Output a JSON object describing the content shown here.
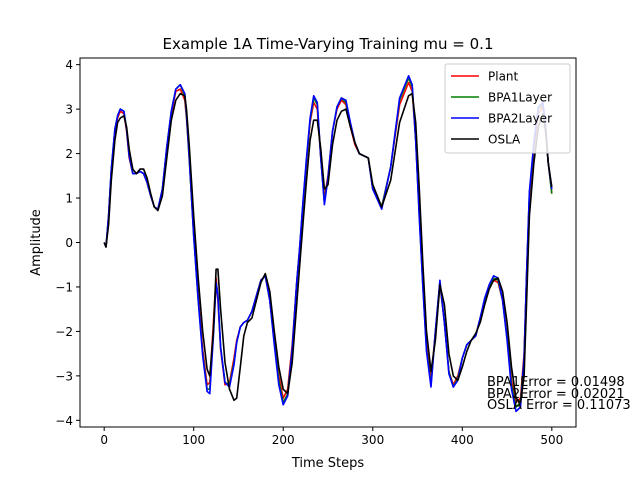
{
  "chart_data": {
    "type": "line",
    "title": "Example 1A Time-Varying Training mu = 0.1",
    "xlabel": "Time Steps",
    "ylabel": "Amplitude",
    "xlim": [
      -27,
      527
    ],
    "ylim": [
      -4.15,
      4.15
    ],
    "xticks": [
      0,
      100,
      200,
      300,
      400,
      500
    ],
    "xtick_labels": [
      "0",
      "100",
      "200",
      "300",
      "400",
      "500"
    ],
    "yticks": [
      -4,
      -3,
      -2,
      -1,
      0,
      1,
      2,
      3,
      4
    ],
    "ytick_labels": [
      "−4",
      "−3",
      "−2",
      "−1",
      "0",
      "1",
      "2",
      "3",
      "4"
    ],
    "grid": false,
    "legend_position": "top-right",
    "annotations": [
      "BPA1Error = 0.01498",
      "BPA2Error = 0.02021",
      "OSLA Error = 0.11073"
    ],
    "series": [
      {
        "name": "Plant",
        "color": "#ff0000",
        "x": [
          0,
          2,
          5,
          8,
          12,
          15,
          18,
          22,
          25,
          28,
          32,
          36,
          40,
          44,
          48,
          52,
          56,
          60,
          65,
          70,
          75,
          80,
          85,
          90,
          92,
          95,
          100,
          105,
          110,
          115,
          118,
          122,
          125,
          127,
          130,
          135,
          140,
          145,
          148,
          152,
          156,
          160,
          165,
          170,
          175,
          180,
          185,
          190,
          195,
          200,
          205,
          210,
          215,
          218,
          222,
          226,
          230,
          234,
          238,
          242,
          246,
          250,
          255,
          260,
          265,
          270,
          275,
          280,
          285,
          290,
          295,
          300,
          310,
          320,
          330,
          340,
          344,
          348,
          352,
          356,
          360,
          365,
          370,
          375,
          380,
          385,
          390,
          395,
          400,
          405,
          410,
          415,
          420,
          425,
          430,
          435,
          440,
          445,
          450,
          455,
          460,
          465,
          469,
          472,
          475,
          480,
          485,
          490,
          493,
          496,
          500
        ],
        "y": [
          0.0,
          -0.1,
          0.6,
          1.6,
          2.5,
          2.8,
          2.95,
          2.9,
          2.5,
          1.9,
          1.55,
          1.55,
          1.6,
          1.55,
          1.35,
          1.05,
          0.8,
          0.75,
          1.2,
          2.1,
          2.9,
          3.4,
          3.45,
          3.2,
          2.8,
          1.9,
          0.2,
          -1.2,
          -2.4,
          -3.2,
          -3.15,
          -1.8,
          -0.8,
          -1.3,
          -2.4,
          -3.2,
          -3.15,
          -2.6,
          -2.2,
          -1.9,
          -1.8,
          -1.75,
          -1.55,
          -1.2,
          -0.85,
          -0.75,
          -1.3,
          -2.2,
          -3.0,
          -3.5,
          -3.3,
          -2.3,
          -0.9,
          -0.2,
          0.8,
          1.8,
          2.7,
          3.15,
          3.0,
          1.9,
          1.0,
          1.5,
          2.5,
          3.0,
          3.2,
          3.1,
          2.6,
          2.2,
          2.0,
          1.95,
          1.9,
          1.2,
          0.8,
          1.7,
          3.1,
          3.6,
          3.4,
          2.3,
          0.7,
          -0.9,
          -2.3,
          -3.1,
          -2.0,
          -0.95,
          -1.8,
          -2.9,
          -3.2,
          -3.0,
          -2.6,
          -2.3,
          -2.2,
          -2.1,
          -1.7,
          -1.3,
          -1.0,
          -0.85,
          -0.9,
          -1.3,
          -2.1,
          -3.1,
          -3.6,
          -3.5,
          -2.5,
          -0.6,
          1.0,
          2.1,
          2.9,
          3.05,
          2.6,
          1.8,
          1.1
        ]
      },
      {
        "name": "BPA1Layer",
        "color": "#008000",
        "x": [
          0,
          2,
          5,
          8,
          12,
          15,
          18,
          22,
          25,
          28,
          32,
          36,
          40,
          44,
          48,
          52,
          56,
          60,
          65,
          70,
          75,
          80,
          85,
          90,
          92,
          95,
          100,
          105,
          110,
          115,
          118,
          122,
          125,
          127,
          130,
          135,
          140,
          145,
          148,
          152,
          156,
          160,
          165,
          170,
          175,
          180,
          185,
          190,
          195,
          200,
          205,
          210,
          215,
          218,
          222,
          226,
          230,
          234,
          238,
          242,
          246,
          250,
          255,
          260,
          265,
          270,
          275,
          280,
          285,
          290,
          295,
          300,
          310,
          320,
          330,
          340,
          344,
          348,
          352,
          356,
          360,
          365,
          370,
          375,
          380,
          385,
          390,
          395,
          400,
          405,
          410,
          415,
          420,
          425,
          430,
          435,
          440,
          445,
          450,
          455,
          460,
          465,
          469,
          472,
          475,
          480,
          485,
          490,
          493,
          496,
          500
        ],
        "y": [
          0.0,
          -0.1,
          0.6,
          1.65,
          2.55,
          2.85,
          3.0,
          2.95,
          2.55,
          1.95,
          1.55,
          1.55,
          1.6,
          1.55,
          1.35,
          1.05,
          0.8,
          0.75,
          1.2,
          2.15,
          2.95,
          3.45,
          3.55,
          3.3,
          2.85,
          1.9,
          0.15,
          -1.3,
          -2.5,
          -3.3,
          -3.3,
          -2.0,
          -0.9,
          -1.2,
          -2.35,
          -3.15,
          -3.2,
          -2.7,
          -2.25,
          -1.9,
          -1.8,
          -1.75,
          -1.55,
          -1.2,
          -0.85,
          -0.75,
          -1.3,
          -2.25,
          -3.1,
          -3.6,
          -3.4,
          -2.4,
          -0.9,
          -0.2,
          0.85,
          1.85,
          2.75,
          3.25,
          3.1,
          1.9,
          0.9,
          1.45,
          2.5,
          3.05,
          3.25,
          3.15,
          2.65,
          2.25,
          2.0,
          1.95,
          1.9,
          1.2,
          0.8,
          1.7,
          3.2,
          3.7,
          3.5,
          2.3,
          0.6,
          -1.0,
          -2.4,
          -3.2,
          -2.0,
          -0.9,
          -1.8,
          -2.9,
          -3.25,
          -3.05,
          -2.6,
          -2.3,
          -2.2,
          -2.1,
          -1.7,
          -1.3,
          -1.0,
          -0.8,
          -0.85,
          -1.3,
          -2.15,
          -3.2,
          -3.7,
          -3.6,
          -2.6,
          -0.6,
          1.1,
          2.2,
          3.0,
          3.1,
          2.6,
          1.8,
          1.1
        ]
      },
      {
        "name": "BPA2Layer",
        "color": "#0000ff",
        "x": [
          0,
          2,
          5,
          8,
          12,
          15,
          18,
          22,
          25,
          28,
          32,
          36,
          40,
          44,
          48,
          52,
          56,
          60,
          65,
          70,
          75,
          80,
          85,
          90,
          92,
          95,
          100,
          105,
          110,
          115,
          118,
          122,
          125,
          127,
          130,
          135,
          140,
          145,
          148,
          152,
          156,
          160,
          165,
          170,
          175,
          180,
          185,
          190,
          195,
          200,
          205,
          210,
          215,
          218,
          222,
          226,
          230,
          234,
          238,
          242,
          246,
          250,
          255,
          260,
          265,
          270,
          275,
          280,
          285,
          290,
          295,
          300,
          310,
          320,
          330,
          340,
          344,
          348,
          352,
          356,
          360,
          365,
          370,
          375,
          380,
          385,
          390,
          395,
          400,
          405,
          410,
          415,
          420,
          425,
          430,
          435,
          440,
          445,
          450,
          455,
          460,
          465,
          469,
          472,
          475,
          480,
          485,
          490,
          493,
          496,
          500
        ],
        "y": [
          0.0,
          -0.1,
          0.6,
          1.65,
          2.55,
          2.85,
          3.0,
          2.95,
          2.55,
          1.95,
          1.55,
          1.55,
          1.6,
          1.55,
          1.35,
          1.05,
          0.8,
          0.75,
          1.2,
          2.15,
          2.95,
          3.45,
          3.55,
          3.35,
          2.9,
          1.95,
          0.15,
          -1.3,
          -2.55,
          -3.35,
          -3.4,
          -2.1,
          -0.9,
          -1.2,
          -2.35,
          -3.15,
          -3.25,
          -2.75,
          -2.25,
          -1.9,
          -1.8,
          -1.75,
          -1.55,
          -1.2,
          -0.85,
          -0.75,
          -1.3,
          -2.3,
          -3.2,
          -3.65,
          -3.45,
          -2.4,
          -0.9,
          -0.2,
          0.9,
          1.9,
          2.8,
          3.3,
          3.15,
          1.9,
          0.85,
          1.45,
          2.5,
          3.05,
          3.25,
          3.2,
          2.7,
          2.25,
          2.0,
          1.95,
          1.9,
          1.2,
          0.75,
          1.7,
          3.25,
          3.75,
          3.55,
          2.3,
          0.55,
          -1.0,
          -2.45,
          -3.25,
          -2.0,
          -0.85,
          -1.8,
          -2.95,
          -3.25,
          -3.1,
          -2.6,
          -2.3,
          -2.2,
          -2.1,
          -1.7,
          -1.25,
          -0.95,
          -0.75,
          -0.8,
          -1.3,
          -2.2,
          -3.3,
          -3.8,
          -3.7,
          -2.6,
          -0.55,
          1.15,
          2.25,
          3.05,
          3.15,
          2.65,
          1.8,
          1.2
        ]
      },
      {
        "name": "OSLA",
        "color": "#000000",
        "x": [
          0,
          2,
          5,
          8,
          12,
          15,
          18,
          22,
          25,
          28,
          32,
          36,
          40,
          44,
          48,
          52,
          56,
          60,
          65,
          70,
          75,
          80,
          85,
          90,
          92,
          95,
          100,
          105,
          110,
          115,
          118,
          122,
          125,
          127,
          130,
          135,
          140,
          145,
          148,
          152,
          156,
          160,
          165,
          170,
          175,
          180,
          185,
          190,
          195,
          200,
          205,
          210,
          215,
          218,
          222,
          226,
          230,
          234,
          238,
          242,
          246,
          250,
          255,
          260,
          265,
          270,
          275,
          280,
          285,
          290,
          295,
          300,
          310,
          320,
          330,
          340,
          344,
          348,
          352,
          356,
          360,
          365,
          370,
          375,
          380,
          385,
          390,
          395,
          400,
          405,
          410,
          415,
          420,
          425,
          430,
          435,
          440,
          445,
          450,
          455,
          460,
          465,
          469,
          472,
          475,
          480,
          485,
          490,
          493,
          496,
          500
        ],
        "y": [
          0.0,
          -0.1,
          0.4,
          1.4,
          2.3,
          2.7,
          2.8,
          2.85,
          2.6,
          2.1,
          1.65,
          1.55,
          1.65,
          1.65,
          1.45,
          1.1,
          0.8,
          0.72,
          1.05,
          1.9,
          2.75,
          3.2,
          3.35,
          3.3,
          3.0,
          2.2,
          0.6,
          -0.8,
          -2.0,
          -2.85,
          -3.0,
          -2.0,
          -0.6,
          -0.6,
          -1.5,
          -2.7,
          -3.3,
          -3.55,
          -3.5,
          -2.8,
          -2.1,
          -1.8,
          -1.7,
          -1.3,
          -0.9,
          -0.7,
          -1.1,
          -2.0,
          -2.8,
          -3.3,
          -3.4,
          -2.7,
          -1.4,
          -0.6,
          0.4,
          1.4,
          2.3,
          2.75,
          2.75,
          2.1,
          1.2,
          1.3,
          2.2,
          2.75,
          2.95,
          3.0,
          2.6,
          2.25,
          2.0,
          1.95,
          1.9,
          1.3,
          0.8,
          1.4,
          2.7,
          3.3,
          3.35,
          2.7,
          1.2,
          -0.5,
          -2.0,
          -2.9,
          -2.2,
          -0.95,
          -1.4,
          -2.5,
          -3.0,
          -3.1,
          -2.8,
          -2.45,
          -2.2,
          -2.05,
          -1.8,
          -1.4,
          -1.05,
          -0.85,
          -0.8,
          -1.1,
          -1.8,
          -2.8,
          -3.5,
          -3.6,
          -3.0,
          -1.2,
          0.6,
          1.8,
          2.6,
          2.9,
          2.5,
          1.8,
          1.25
        ]
      }
    ]
  }
}
